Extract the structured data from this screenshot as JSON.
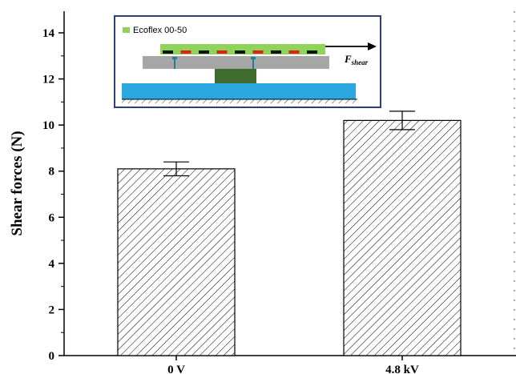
{
  "chart_data": {
    "type": "bar",
    "categories": [
      "0 V",
      "4.8 kV"
    ],
    "values": [
      8.1,
      10.2
    ],
    "errors": [
      0.3,
      0.4
    ],
    "ylabel": "Shear forces (N)",
    "xlabel": "",
    "ylim": [
      0,
      15
    ],
    "yticks": [
      "0",
      "2",
      "4",
      "6",
      "8",
      "10",
      "12",
      "14"
    ],
    "bar_fill": "hatched",
    "grid": false
  },
  "inset": {
    "legend_label": "Ecoflex 00-50",
    "force_label": "F",
    "force_subscript": "shear",
    "colors": {
      "ecoflex": "#8fd35a",
      "plate": "#a6a6a6",
      "block": "#3f6b2e",
      "base": "#2aa7df",
      "frame": "#2e3f73",
      "electrode_red": "#e02020",
      "electrode_black": "#111111"
    }
  }
}
